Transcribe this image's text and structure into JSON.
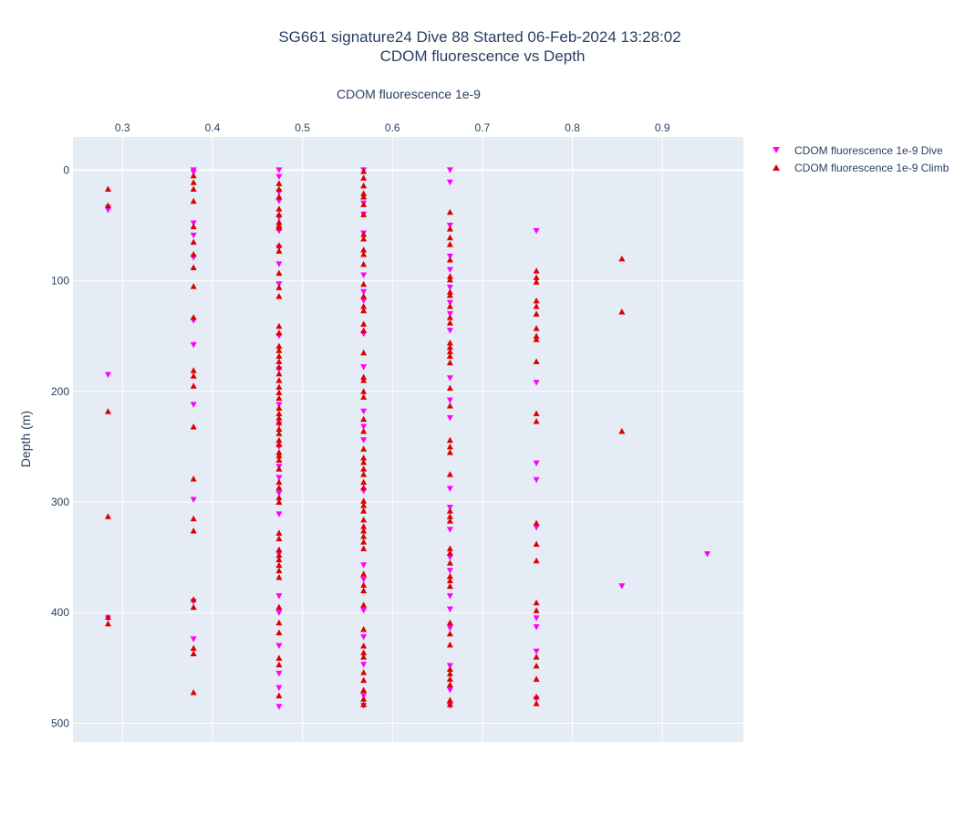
{
  "chart_data": {
    "type": "scatter",
    "title": [
      "SG661 signature24 Dive 88 Started 06-Feb-2024 13:28:02",
      "CDOM fluorescence vs Depth"
    ],
    "xlabel": "CDOM fluorescence 1e-9",
    "ylabel": "Depth (m)",
    "xlim": [
      0.245,
      0.99
    ],
    "ylim": [
      517,
      -30
    ],
    "y_reversed": true,
    "x_axis_position": "top",
    "grid": true,
    "legend_placement": "top-right",
    "x_ticks": [
      "0.3",
      "0.4",
      "0.5",
      "0.6",
      "0.7",
      "0.8",
      "0.9"
    ],
    "y_ticks": [
      "0",
      "100",
      "200",
      "300",
      "400",
      "500"
    ],
    "colors": {
      "dive": "#ff00ff",
      "climb": "#dd0000",
      "plot_bg": "#e5ecf6",
      "grid": "#ffffff"
    },
    "series": [
      {
        "name": "CDOM fluorescence 1e-9 Dive",
        "marker": "triangle-down",
        "color": "#ff00ff",
        "points": [
          [
            0.284,
            34
          ],
          [
            0.284,
            36
          ],
          [
            0.284,
            185
          ],
          [
            0.284,
            405
          ],
          [
            0.379,
            0
          ],
          [
            0.379,
            2
          ],
          [
            0.379,
            48
          ],
          [
            0.379,
            59
          ],
          [
            0.379,
            79
          ],
          [
            0.379,
            136
          ],
          [
            0.379,
            158
          ],
          [
            0.379,
            212
          ],
          [
            0.379,
            298
          ],
          [
            0.379,
            390
          ],
          [
            0.379,
            424
          ],
          [
            0.474,
            0
          ],
          [
            0.474,
            6
          ],
          [
            0.474,
            20
          ],
          [
            0.474,
            28
          ],
          [
            0.474,
            43
          ],
          [
            0.474,
            55
          ],
          [
            0.474,
            70
          ],
          [
            0.474,
            85
          ],
          [
            0.474,
            103
          ],
          [
            0.474,
            150
          ],
          [
            0.474,
            180
          ],
          [
            0.474,
            212
          ],
          [
            0.474,
            230
          ],
          [
            0.474,
            250
          ],
          [
            0.474,
            268
          ],
          [
            0.474,
            278
          ],
          [
            0.474,
            292
          ],
          [
            0.474,
            311
          ],
          [
            0.474,
            347
          ],
          [
            0.474,
            385
          ],
          [
            0.474,
            400
          ],
          [
            0.474,
            430
          ],
          [
            0.474,
            455
          ],
          [
            0.474,
            468
          ],
          [
            0.474,
            485
          ],
          [
            0.568,
            0
          ],
          [
            0.568,
            30
          ],
          [
            0.568,
            40
          ],
          [
            0.568,
            57
          ],
          [
            0.568,
            95
          ],
          [
            0.568,
            110
          ],
          [
            0.568,
            118
          ],
          [
            0.568,
            148
          ],
          [
            0.568,
            178
          ],
          [
            0.568,
            218
          ],
          [
            0.568,
            232
          ],
          [
            0.568,
            244
          ],
          [
            0.568,
            290
          ],
          [
            0.568,
            357
          ],
          [
            0.568,
            370
          ],
          [
            0.568,
            398
          ],
          [
            0.568,
            422
          ],
          [
            0.568,
            447
          ],
          [
            0.568,
            475
          ],
          [
            0.568,
            484
          ],
          [
            0.664,
            0
          ],
          [
            0.664,
            11
          ],
          [
            0.664,
            50
          ],
          [
            0.664,
            78
          ],
          [
            0.664,
            90
          ],
          [
            0.664,
            106
          ],
          [
            0.664,
            120
          ],
          [
            0.664,
            130
          ],
          [
            0.664,
            145
          ],
          [
            0.664,
            188
          ],
          [
            0.664,
            208
          ],
          [
            0.664,
            224
          ],
          [
            0.664,
            288
          ],
          [
            0.664,
            305
          ],
          [
            0.664,
            325
          ],
          [
            0.664,
            350
          ],
          [
            0.664,
            362
          ],
          [
            0.664,
            385
          ],
          [
            0.664,
            397
          ],
          [
            0.664,
            414
          ],
          [
            0.664,
            448
          ],
          [
            0.664,
            470
          ],
          [
            0.664,
            484
          ],
          [
            0.76,
            55
          ],
          [
            0.76,
            192
          ],
          [
            0.76,
            265
          ],
          [
            0.76,
            280
          ],
          [
            0.76,
            323
          ],
          [
            0.76,
            405
          ],
          [
            0.76,
            413
          ],
          [
            0.76,
            435
          ],
          [
            0.76,
            478
          ],
          [
            0.855,
            376
          ],
          [
            0.95,
            347
          ]
        ]
      },
      {
        "name": "CDOM fluorescence 1e-9 Climb",
        "marker": "triangle-up",
        "color": "#dd0000",
        "points": [
          [
            0.284,
            17
          ],
          [
            0.284,
            32
          ],
          [
            0.284,
            218
          ],
          [
            0.284,
            313
          ],
          [
            0.284,
            404
          ],
          [
            0.284,
            410
          ],
          [
            0.379,
            5
          ],
          [
            0.379,
            11
          ],
          [
            0.379,
            17
          ],
          [
            0.379,
            28
          ],
          [
            0.379,
            51
          ],
          [
            0.379,
            65
          ],
          [
            0.379,
            76
          ],
          [
            0.379,
            88
          ],
          [
            0.379,
            105
          ],
          [
            0.379,
            133
          ],
          [
            0.379,
            181
          ],
          [
            0.379,
            186
          ],
          [
            0.379,
            195
          ],
          [
            0.379,
            232
          ],
          [
            0.379,
            279
          ],
          [
            0.379,
            315
          ],
          [
            0.379,
            326
          ],
          [
            0.379,
            388
          ],
          [
            0.379,
            395
          ],
          [
            0.379,
            432
          ],
          [
            0.379,
            437
          ],
          [
            0.379,
            472
          ],
          [
            0.474,
            12
          ],
          [
            0.474,
            17
          ],
          [
            0.474,
            24
          ],
          [
            0.474,
            35
          ],
          [
            0.474,
            40
          ],
          [
            0.474,
            47
          ],
          [
            0.474,
            50
          ],
          [
            0.474,
            52
          ],
          [
            0.474,
            68
          ],
          [
            0.474,
            73
          ],
          [
            0.474,
            93
          ],
          [
            0.474,
            106
          ],
          [
            0.474,
            114
          ],
          [
            0.474,
            141
          ],
          [
            0.474,
            147
          ],
          [
            0.474,
            159
          ],
          [
            0.474,
            163
          ],
          [
            0.474,
            168
          ],
          [
            0.474,
            173
          ],
          [
            0.474,
            178
          ],
          [
            0.474,
            184
          ],
          [
            0.474,
            190
          ],
          [
            0.474,
            196
          ],
          [
            0.474,
            201
          ],
          [
            0.474,
            206
          ],
          [
            0.474,
            215
          ],
          [
            0.474,
            220
          ],
          [
            0.474,
            224
          ],
          [
            0.474,
            228
          ],
          [
            0.474,
            234
          ],
          [
            0.474,
            238
          ],
          [
            0.474,
            244
          ],
          [
            0.474,
            248
          ],
          [
            0.474,
            255
          ],
          [
            0.474,
            258
          ],
          [
            0.474,
            262
          ],
          [
            0.474,
            270
          ],
          [
            0.474,
            282
          ],
          [
            0.474,
            287
          ],
          [
            0.474,
            296
          ],
          [
            0.474,
            300
          ],
          [
            0.474,
            328
          ],
          [
            0.474,
            333
          ],
          [
            0.474,
            343
          ],
          [
            0.474,
            348
          ],
          [
            0.474,
            352
          ],
          [
            0.474,
            357
          ],
          [
            0.474,
            362
          ],
          [
            0.474,
            368
          ],
          [
            0.474,
            395
          ],
          [
            0.474,
            409
          ],
          [
            0.474,
            418
          ],
          [
            0.474,
            441
          ],
          [
            0.474,
            447
          ],
          [
            0.474,
            475
          ],
          [
            0.568,
            1
          ],
          [
            0.568,
            7
          ],
          [
            0.568,
            14
          ],
          [
            0.568,
            21
          ],
          [
            0.568,
            24
          ],
          [
            0.568,
            31
          ],
          [
            0.568,
            40
          ],
          [
            0.568,
            58
          ],
          [
            0.568,
            62
          ],
          [
            0.568,
            72
          ],
          [
            0.568,
            76
          ],
          [
            0.568,
            85
          ],
          [
            0.568,
            103
          ],
          [
            0.568,
            114
          ],
          [
            0.568,
            123
          ],
          [
            0.568,
            127
          ],
          [
            0.568,
            139
          ],
          [
            0.568,
            145
          ],
          [
            0.568,
            165
          ],
          [
            0.568,
            187
          ],
          [
            0.568,
            190
          ],
          [
            0.568,
            200
          ],
          [
            0.568,
            205
          ],
          [
            0.568,
            225
          ],
          [
            0.568,
            236
          ],
          [
            0.568,
            252
          ],
          [
            0.568,
            260
          ],
          [
            0.568,
            264
          ],
          [
            0.568,
            270
          ],
          [
            0.568,
            275
          ],
          [
            0.568,
            282
          ],
          [
            0.568,
            287
          ],
          [
            0.568,
            299
          ],
          [
            0.568,
            303
          ],
          [
            0.568,
            308
          ],
          [
            0.568,
            316
          ],
          [
            0.568,
            322
          ],
          [
            0.568,
            326
          ],
          [
            0.568,
            331
          ],
          [
            0.568,
            336
          ],
          [
            0.568,
            342
          ],
          [
            0.568,
            365
          ],
          [
            0.568,
            375
          ],
          [
            0.568,
            380
          ],
          [
            0.568,
            393
          ],
          [
            0.568,
            415
          ],
          [
            0.568,
            430
          ],
          [
            0.568,
            436
          ],
          [
            0.568,
            440
          ],
          [
            0.568,
            454
          ],
          [
            0.568,
            461
          ],
          [
            0.568,
            470
          ],
          [
            0.568,
            478
          ],
          [
            0.568,
            483
          ],
          [
            0.664,
            38
          ],
          [
            0.664,
            53
          ],
          [
            0.664,
            61
          ],
          [
            0.664,
            67
          ],
          [
            0.664,
            81
          ],
          [
            0.664,
            96
          ],
          [
            0.664,
            99
          ],
          [
            0.664,
            110
          ],
          [
            0.664,
            113
          ],
          [
            0.664,
            123
          ],
          [
            0.664,
            133
          ],
          [
            0.664,
            138
          ],
          [
            0.664,
            156
          ],
          [
            0.664,
            160
          ],
          [
            0.664,
            164
          ],
          [
            0.664,
            168
          ],
          [
            0.664,
            174
          ],
          [
            0.664,
            197
          ],
          [
            0.664,
            213
          ],
          [
            0.664,
            244
          ],
          [
            0.664,
            250
          ],
          [
            0.664,
            255
          ],
          [
            0.664,
            275
          ],
          [
            0.664,
            308
          ],
          [
            0.664,
            313
          ],
          [
            0.664,
            317
          ],
          [
            0.664,
            342
          ],
          [
            0.664,
            346
          ],
          [
            0.664,
            355
          ],
          [
            0.664,
            367
          ],
          [
            0.664,
            371
          ],
          [
            0.664,
            376
          ],
          [
            0.664,
            409
          ],
          [
            0.664,
            419
          ],
          [
            0.664,
            429
          ],
          [
            0.664,
            451
          ],
          [
            0.664,
            455
          ],
          [
            0.664,
            460
          ],
          [
            0.664,
            465
          ],
          [
            0.664,
            479
          ],
          [
            0.664,
            483
          ],
          [
            0.76,
            91
          ],
          [
            0.76,
            97
          ],
          [
            0.76,
            101
          ],
          [
            0.76,
            118
          ],
          [
            0.76,
            123
          ],
          [
            0.76,
            130
          ],
          [
            0.76,
            143
          ],
          [
            0.76,
            150
          ],
          [
            0.76,
            153
          ],
          [
            0.76,
            173
          ],
          [
            0.76,
            220
          ],
          [
            0.76,
            227
          ],
          [
            0.76,
            319
          ],
          [
            0.76,
            338
          ],
          [
            0.76,
            353
          ],
          [
            0.76,
            391
          ],
          [
            0.76,
            398
          ],
          [
            0.76,
            440
          ],
          [
            0.76,
            448
          ],
          [
            0.76,
            460
          ],
          [
            0.76,
            476
          ],
          [
            0.76,
            482
          ],
          [
            0.855,
            80
          ],
          [
            0.855,
            128
          ],
          [
            0.855,
            236
          ]
        ]
      }
    ]
  }
}
